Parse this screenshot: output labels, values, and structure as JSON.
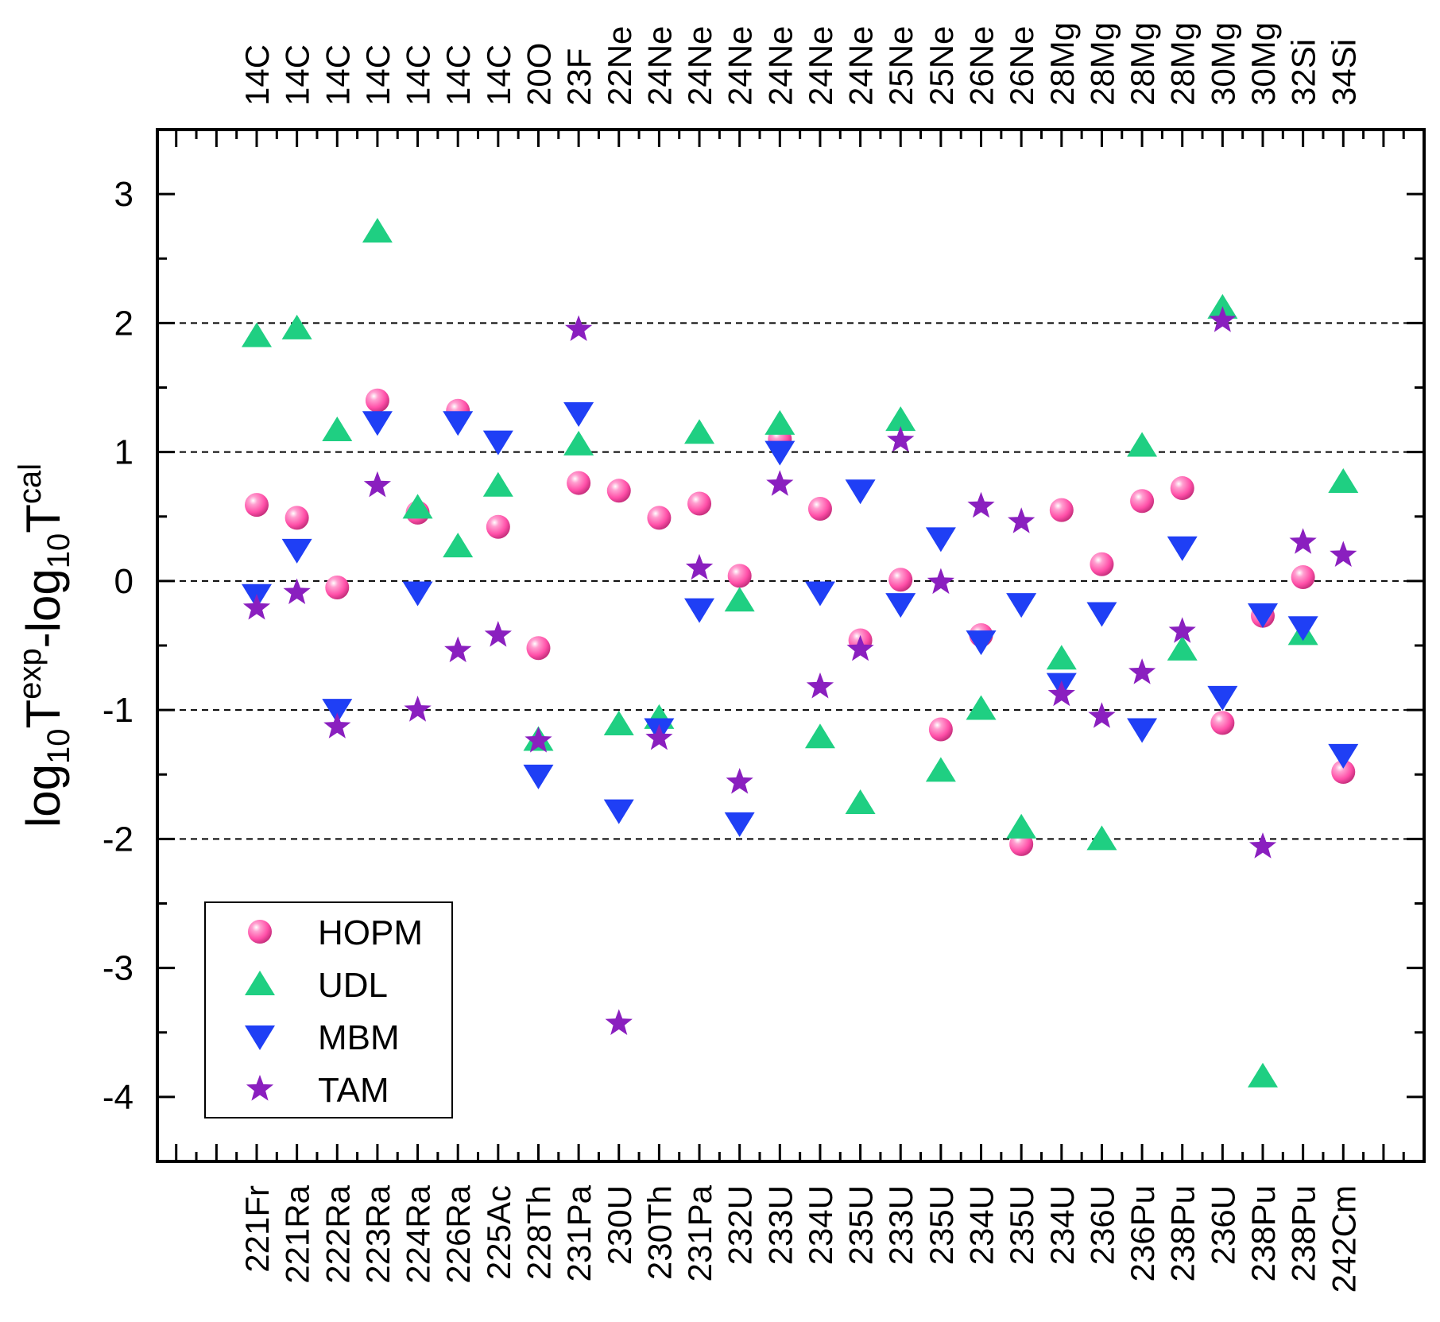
{
  "chart_data": {
    "type": "scatter",
    "ylabel": {
      "parts": [
        {
          "text": "log",
          "style": "normal"
        },
        {
          "text": "10",
          "style": "sub"
        },
        {
          "text": "T",
          "style": "normal"
        },
        {
          "text": "exp",
          "style": "sup"
        },
        {
          "text": "-log",
          "style": "normal"
        },
        {
          "text": "10",
          "style": "sub"
        },
        {
          "text": "T",
          "style": "normal"
        },
        {
          "text": "cal",
          "style": "sup"
        }
      ]
    },
    "ylim": [
      -4.5,
      3.5
    ],
    "yticks": [
      -4,
      -3,
      -2,
      -1,
      0,
      1,
      2,
      3
    ],
    "ytick_labels": [
      "-4",
      "-3",
      "-2",
      "-1",
      "0",
      "1",
      "2",
      "3"
    ],
    "gridlines_y": [
      -2,
      -1,
      0,
      1,
      2
    ],
    "bottom_labels": [
      "221Fr",
      "221Ra",
      "222Ra",
      "223Ra",
      "224Ra",
      "226Ra",
      "225Ac",
      "228Th",
      "231Pa",
      "230U",
      "230Th",
      "231Pa",
      "232U",
      "233U",
      "234U",
      "235U",
      "233U",
      "235U",
      "234U",
      "235U",
      "234U",
      "236U",
      "236Pu",
      "238Pu",
      "236U",
      "238Pu",
      "238Pu",
      "242Cm"
    ],
    "top_labels": [
      "14C",
      "14C",
      "14C",
      "14C",
      "14C",
      "14C",
      "14C",
      "20O",
      "23F",
      "22Ne",
      "24Ne",
      "24Ne",
      "24Ne",
      "24Ne",
      "24Ne",
      "24Ne",
      "25Ne",
      "25Ne",
      "26Ne",
      "26Ne",
      "28Mg",
      "28Mg",
      "28Mg",
      "28Mg",
      "30Mg",
      "30Mg",
      "32Si",
      "34Si"
    ],
    "series": [
      {
        "name": "HOPM",
        "marker": "sphere",
        "color": "#ff4fa8",
        "values": [
          0.59,
          0.49,
          -0.05,
          1.4,
          0.53,
          1.32,
          0.42,
          -0.52,
          0.76,
          0.7,
          0.49,
          0.6,
          0.04,
          1.1,
          0.56,
          -0.46,
          0.01,
          -1.15,
          -0.42,
          -2.04,
          0.55,
          0.13,
          0.62,
          0.72,
          -1.1,
          -0.27,
          0.03,
          -1.48
        ]
      },
      {
        "name": "UDL",
        "marker": "triangle-up",
        "color": "#1fcf82",
        "values": [
          1.9,
          1.96,
          1.17,
          2.71,
          0.57,
          0.27,
          0.74,
          -1.23,
          1.06,
          -1.11,
          -1.06,
          1.15,
          -0.15,
          1.22,
          -1.21,
          -1.72,
          1.25,
          -1.47,
          -0.99,
          -1.91,
          -0.6,
          -2.0,
          1.05,
          -0.53,
          2.12,
          -3.84,
          -0.41,
          0.77
        ]
      },
      {
        "name": "MBM",
        "marker": "triangle-down",
        "color": "#1f3ff5",
        "values": [
          -0.11,
          0.24,
          -1.0,
          1.23,
          -0.09,
          1.23,
          1.08,
          -1.51,
          1.3,
          -1.78,
          -1.15,
          -0.22,
          -1.88,
          1.0,
          -0.09,
          0.7,
          -0.18,
          0.33,
          -0.47,
          -0.18,
          -0.8,
          -0.25,
          -1.15,
          0.26,
          -0.9,
          -0.26,
          -0.36,
          -1.35
        ]
      },
      {
        "name": "TAM",
        "marker": "star",
        "color": "#8a1fbf",
        "values": [
          -0.21,
          -0.09,
          -1.13,
          0.74,
          -1.0,
          -0.54,
          -0.42,
          -1.24,
          1.95,
          -3.43,
          -1.22,
          0.1,
          -1.56,
          0.75,
          -0.82,
          -0.53,
          1.09,
          -0.01,
          0.58,
          0.46,
          -0.88,
          -1.05,
          -0.71,
          -0.39,
          2.02,
          -2.06,
          0.3,
          0.2
        ]
      }
    ]
  }
}
